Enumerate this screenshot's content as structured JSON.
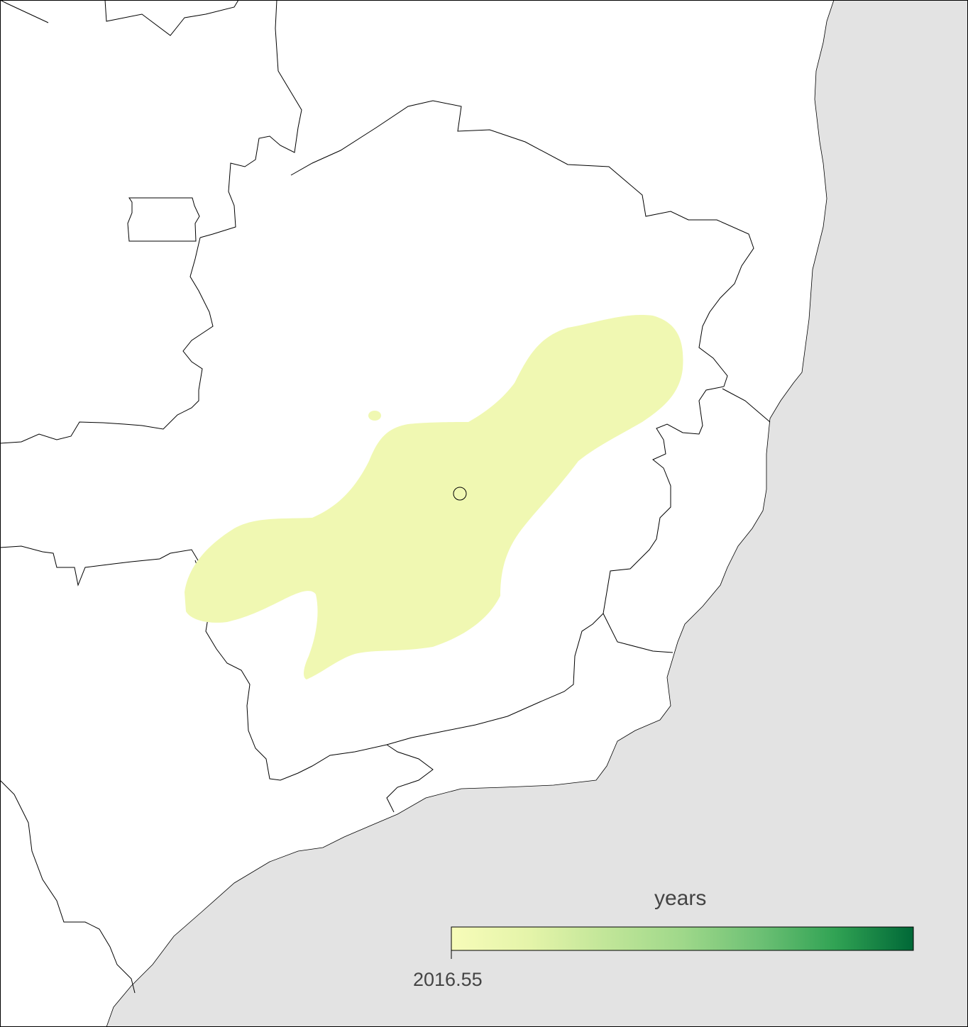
{
  "map": {
    "ocean_color": "#e3e3e3",
    "land_color": "#ffffff",
    "border_color": "#000000",
    "density_color": "#f0f8b2",
    "marker": "circle-marker"
  },
  "legend": {
    "title": "years",
    "label": "2016.55",
    "gradient_colors": [
      "#f7fcb9",
      "#d9f0a3",
      "#addd8e",
      "#78c679",
      "#41ab5d",
      "#238443",
      "#006837"
    ]
  }
}
